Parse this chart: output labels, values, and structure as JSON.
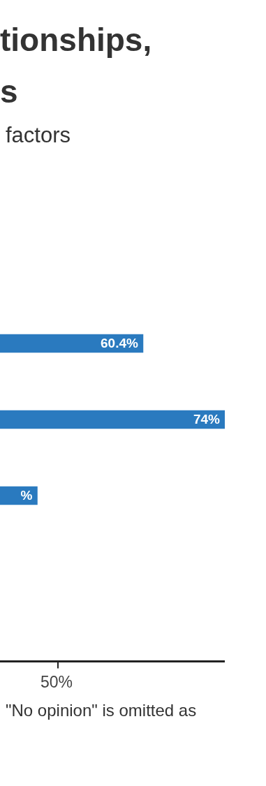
{
  "chart_data": {
    "type": "bar",
    "orientation": "horizontal",
    "title": "tionships,\ns",
    "subtitle": "factors",
    "annotations": [
      "50%",
      "\"No opinion\" is omitted as"
    ],
    "categories": [
      null,
      null,
      null
    ],
    "values": [
      60.4,
      74,
      42.8
    ],
    "value_labels": [
      "60.4%",
      "74%",
      "%"
    ],
    "color": "#2a7abf"
  }
}
